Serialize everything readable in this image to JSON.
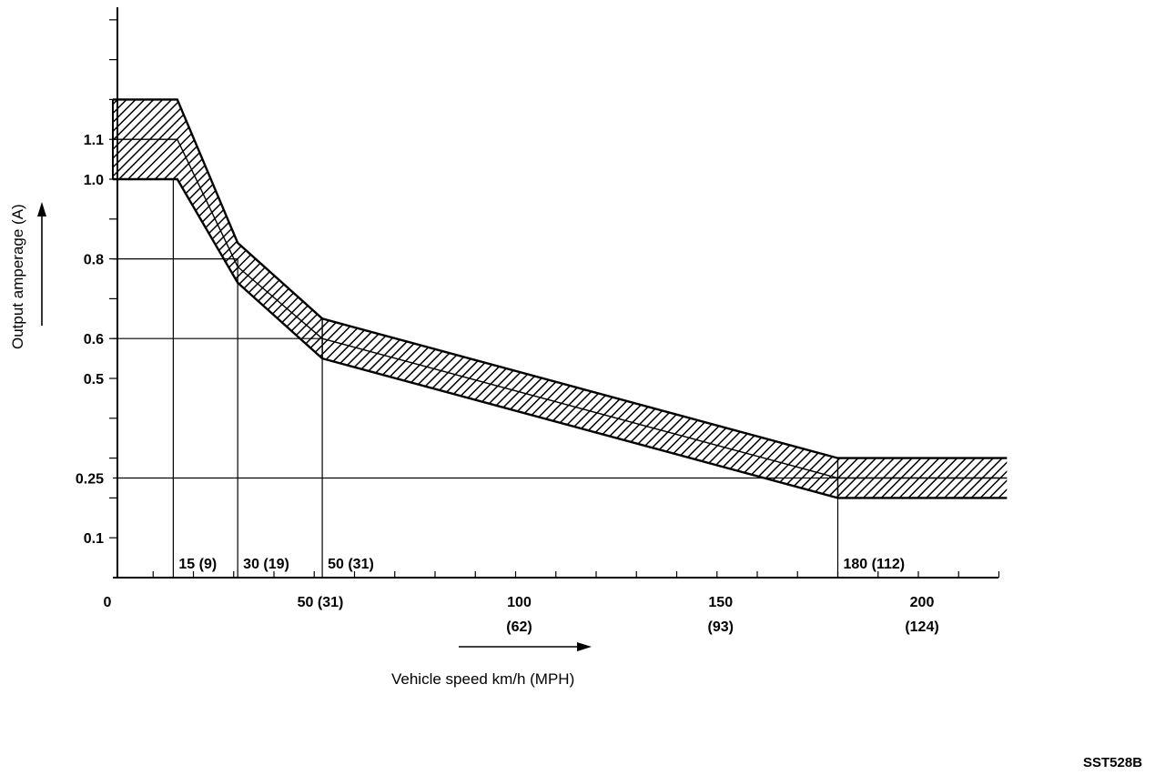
{
  "chart_data": {
    "type": "area",
    "title": "",
    "xlabel": "Vehicle speed  km/h (MPH)",
    "ylabel": "Output amperage (A)",
    "xlim": [
      0,
      220
    ],
    "ylim": [
      0,
      1.45
    ],
    "x_ticks": [
      {
        "x": 0,
        "label": "0",
        "sub": ""
      },
      {
        "x": 50,
        "label": "50 (31)",
        "sub": ""
      },
      {
        "x": 100,
        "label": "100",
        "sub": "(62)"
      },
      {
        "x": 150,
        "label": "150",
        "sub": "(93)"
      },
      {
        "x": 200,
        "label": "200",
        "sub": "(124)"
      }
    ],
    "y_ticks": [
      {
        "y": 1.1,
        "label": "1.1"
      },
      {
        "y": 1.0,
        "label": "1.0"
      },
      {
        "y": 0.8,
        "label": "0.8"
      },
      {
        "y": 0.6,
        "label": "0.6"
      },
      {
        "y": 0.5,
        "label": "0.5"
      },
      {
        "y": 0.25,
        "label": "0.25"
      },
      {
        "y": 0.1,
        "label": "0.1"
      }
    ],
    "series": [
      {
        "role": "upper",
        "x": [
          0,
          16,
          31,
          52,
          180,
          222
        ],
        "y": [
          1.2,
          1.2,
          0.84,
          0.65,
          0.3,
          0.3
        ]
      },
      {
        "role": "nominal",
        "x": [
          0,
          16,
          31,
          52,
          180,
          222
        ],
        "y": [
          1.1,
          1.1,
          0.78,
          0.6,
          0.25,
          0.25
        ]
      },
      {
        "role": "lower",
        "x": [
          0,
          16,
          31,
          52,
          180,
          222
        ],
        "y": [
          1.0,
          1.0,
          0.74,
          0.55,
          0.2,
          0.2
        ]
      }
    ],
    "reference_lines": [
      {
        "x": 15,
        "y": 1.0,
        "label": "15 (9)"
      },
      {
        "x": 31,
        "y": 0.8,
        "label": "30 (19)"
      },
      {
        "x": 52,
        "y": 0.6,
        "label": "50 (31)"
      },
      {
        "x": 180,
        "y": 0.25,
        "label": "180 (112)"
      }
    ],
    "grid": false,
    "legend": "none"
  },
  "figure_code": "SST528B"
}
